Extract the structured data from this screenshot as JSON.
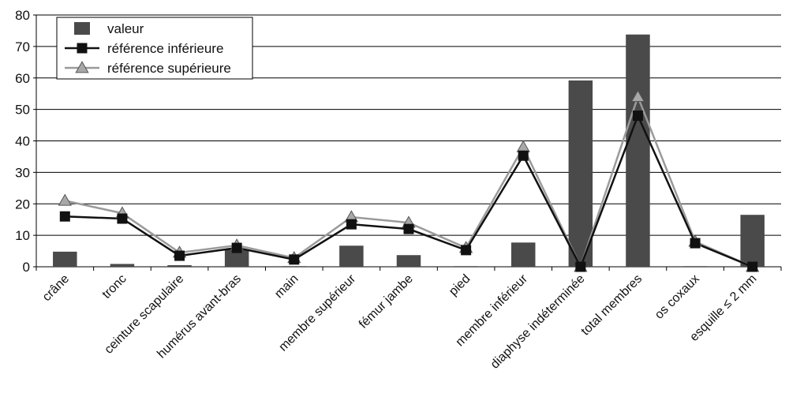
{
  "chart_data": {
    "type": "bar",
    "title": "",
    "xlabel": "",
    "ylabel": "",
    "ylim": [
      0,
      80
    ],
    "yticks": [
      0,
      10,
      20,
      30,
      40,
      50,
      60,
      70,
      80
    ],
    "grid": true,
    "legend_position": "top-left",
    "categories": [
      "crâne",
      "tronc",
      "ceinture scapulaire",
      "humérus avant-bras",
      "main",
      "membre supérieur",
      "fémur jambe",
      "pied",
      "membre inférieur",
      "diaphyse indéterminée",
      "total membres",
      "os coxaux",
      "esquille ≤ 2 mm"
    ],
    "series": [
      {
        "name": "valeur",
        "kind": "bar",
        "color": "#4a4a4a",
        "values": [
          4.8,
          0.9,
          0.5,
          5.5,
          0.2,
          6.7,
          3.7,
          0.2,
          7.7,
          59.2,
          73.8,
          0.2,
          16.5
        ]
      },
      {
        "name": "référence inférieure",
        "kind": "line",
        "marker": "square",
        "color": "#111111",
        "values": [
          16,
          15.3,
          3.5,
          6,
          2.3,
          13.5,
          12,
          5.3,
          35.3,
          0,
          48,
          7.5,
          0
        ]
      },
      {
        "name": "référence supérieure",
        "kind": "line",
        "marker": "triangle",
        "color": "#9a9a9a",
        "values": [
          21,
          17,
          4.5,
          6.8,
          2.8,
          15.8,
          14,
          6,
          38,
          0,
          54,
          8,
          0
        ]
      }
    ]
  }
}
